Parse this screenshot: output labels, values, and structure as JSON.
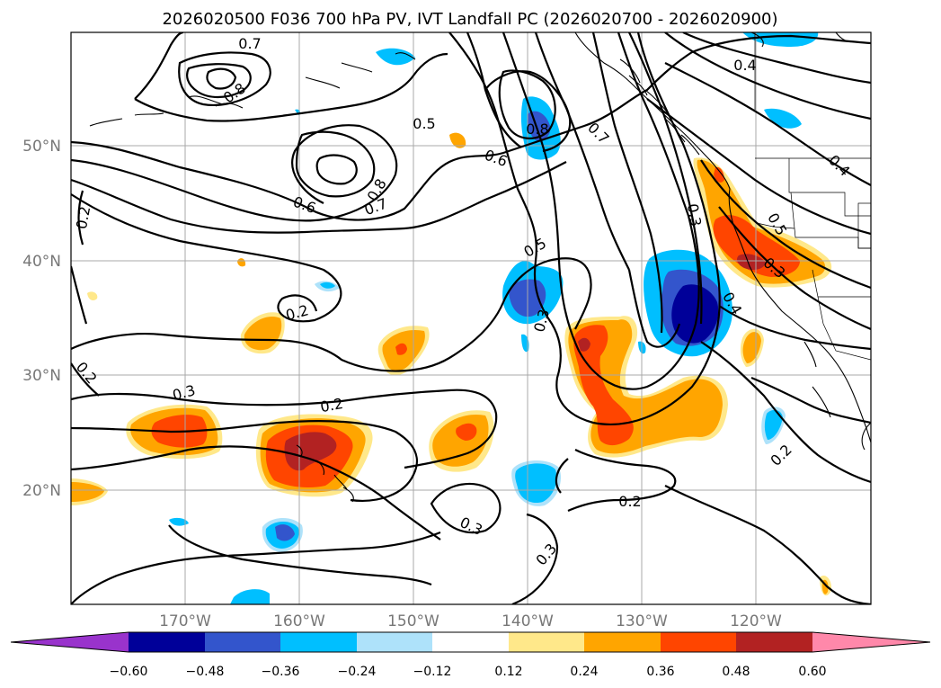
{
  "title": "2026020500 F036 700 hPa PV, IVT Landfall PC (2026020700 - 2026020900)",
  "lat_labels": [
    "50°N",
    "40°N",
    "30°N",
    "20°N"
  ],
  "lon_labels": [
    "170°W",
    "160°W",
    "150°W",
    "140°W",
    "130°W",
    "120°W"
  ],
  "colorbar": {
    "ticks": [
      "−0.60",
      "−0.48",
      "−0.36",
      "−0.24",
      "−0.12",
      "0.12",
      "0.24",
      "0.36",
      "0.48",
      "0.60"
    ],
    "colors": [
      "#9933cc",
      "#000099",
      "#3355cc",
      "#00bfff",
      "#aee2fa",
      "#ffffff",
      "#ffe88a",
      "#ffa500",
      "#ff4500",
      "#b22222",
      "#ff88aa"
    ]
  },
  "contour_labels": [
    "0.7",
    "0.8",
    "0.5",
    "0.6",
    "0.8",
    "0.7",
    "0.6",
    "0.8",
    "0.7",
    "0.4",
    "0.4",
    "0.5",
    "0.3",
    "0.3",
    "0.4",
    "0.2",
    "0.2",
    "0.2",
    "0.5",
    "0.3",
    "0.2",
    "0.3",
    "0.2",
    "0.2",
    "0.3",
    "0.3"
  ],
  "colors": {
    "gridline": "#a8a8a8",
    "neg1": "#aee2fa",
    "neg2": "#00bfff",
    "neg3": "#3355cc",
    "neg4": "#000099",
    "pos1": "#ffe88a",
    "pos2": "#ffa500",
    "pos3": "#ff4500",
    "pos4": "#b22222"
  }
}
